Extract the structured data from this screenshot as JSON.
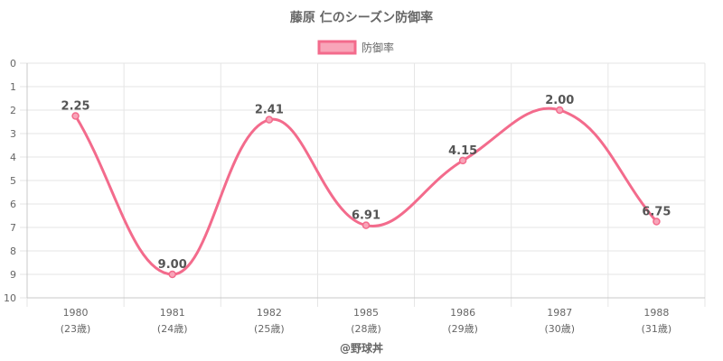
{
  "chart_data": {
    "type": "line",
    "title": "藤原 仁のシーズン防御率",
    "categories": [
      "1980",
      "1981",
      "1982",
      "1985",
      "1986",
      "1987",
      "1988"
    ],
    "category_sublabels": [
      "(23歳)",
      "(24歳)",
      "(25歳)",
      "(28歳)",
      "(29歳)",
      "(30歳)",
      "(31歳)"
    ],
    "series": [
      {
        "name": "防御率",
        "values": [
          2.25,
          9.0,
          2.41,
          6.91,
          4.15,
          2.0,
          6.75
        ],
        "value_labels": [
          "2.25",
          "9.00",
          "2.41",
          "6.91",
          "4.15",
          "2.00",
          "6.75"
        ],
        "color": "#f36b8c",
        "fill": "#f8a5b9"
      }
    ],
    "yaxis": {
      "reversed": true,
      "ylim": [
        0,
        10
      ],
      "ticks": [
        "0",
        "1",
        "2",
        "3",
        "4",
        "5",
        "6",
        "7",
        "8",
        "9",
        "10"
      ]
    },
    "legend": "top-center",
    "grid": true,
    "source": "@野球丼"
  }
}
